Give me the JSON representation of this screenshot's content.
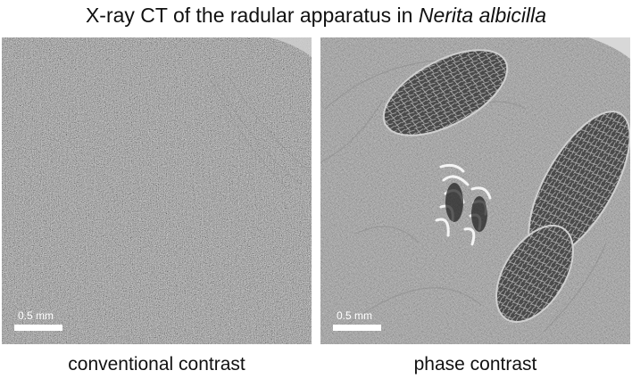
{
  "title": {
    "prefix": "X-ray CT of the radular apparatus in ",
    "species": "Nerita albicilla"
  },
  "panels": [
    {
      "caption": "conventional contrast",
      "scale_label": "0.5 mm"
    },
    {
      "caption": "phase contrast",
      "scale_label": "0.5 mm"
    }
  ]
}
